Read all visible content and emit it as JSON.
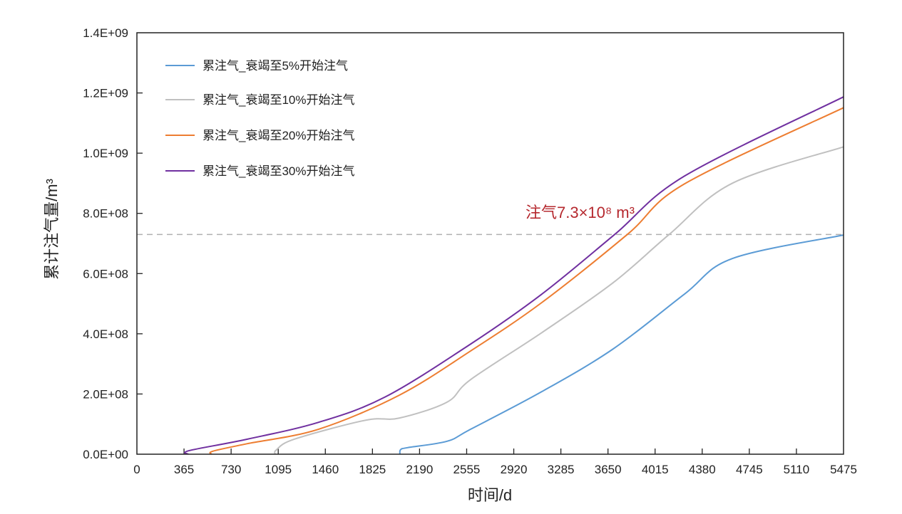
{
  "chart_data": {
    "type": "line",
    "xlabel": "时间/d",
    "ylabel": "累计注气量/m³",
    "xlim": [
      0,
      5475
    ],
    "ylim": [
      0,
      1400000000
    ],
    "x_ticks": [
      "0",
      "365",
      "730",
      "1095",
      "1460",
      "1825",
      "2190",
      "2555",
      "2920",
      "3285",
      "3650",
      "4015",
      "4380",
      "4745",
      "5110",
      "5475"
    ],
    "y_ticks": [
      "0.0E+00",
      "2.0E+08",
      "4.0E+08",
      "6.0E+08",
      "8.0E+08",
      "1.0E+09",
      "1.2E+09",
      "1.4E+09"
    ],
    "grid": false,
    "legend_position": "top-left",
    "reference_line": {
      "y": 730000000,
      "style": "dashed",
      "color": "#b0b0b0"
    },
    "annotation": {
      "text": "注气7.3×10⁸ m³",
      "color": "#b5282e"
    },
    "series": [
      {
        "name": "累注气_衰竭至5%开始注气",
        "color": "#5b9bd5",
        "x": [
          2038,
          2043,
          2100,
          2403,
          2586,
          3138,
          3691,
          4243,
          4613,
          5475
        ],
        "y": [
          0,
          15000000,
          22000000,
          43000000,
          83000000,
          208000000,
          350000000,
          532000000,
          650000000,
          728000000
        ]
      },
      {
        "name": "累注气_衰竭至10%开始注气",
        "color": "#c0c0c0",
        "x": [
          1072,
          1080,
          1221,
          1773,
          2033,
          2403,
          2586,
          3138,
          3691,
          4124,
          4613,
          5475
        ],
        "y": [
          0,
          14000000,
          50000000,
          113000000,
          120000000,
          173000000,
          248000000,
          404000000,
          570000000,
          730000000,
          900000000,
          1021000000
        ]
      },
      {
        "name": "累注气_衰竭至20%开始注气",
        "color": "#ed7d31",
        "x": [
          580,
          588,
          856,
          1408,
          2033,
          2586,
          3138,
          3800,
          4243,
          5475
        ],
        "y": [
          0,
          10000000,
          35000000,
          83000000,
          196000000,
          343000000,
          504000000,
          730000000,
          898000000,
          1151000000
        ]
      },
      {
        "name": "累注气_衰竭至30%开始注气",
        "color": "#7030a0",
        "x": [
          398,
          406,
          856,
          1408,
          1923,
          2586,
          3138,
          3702,
          4243,
          5475
        ],
        "y": [
          0,
          12000000,
          50000000,
          106000000,
          190000000,
          366000000,
          532000000,
          730000000,
          924000000,
          1187000000
        ]
      }
    ]
  }
}
